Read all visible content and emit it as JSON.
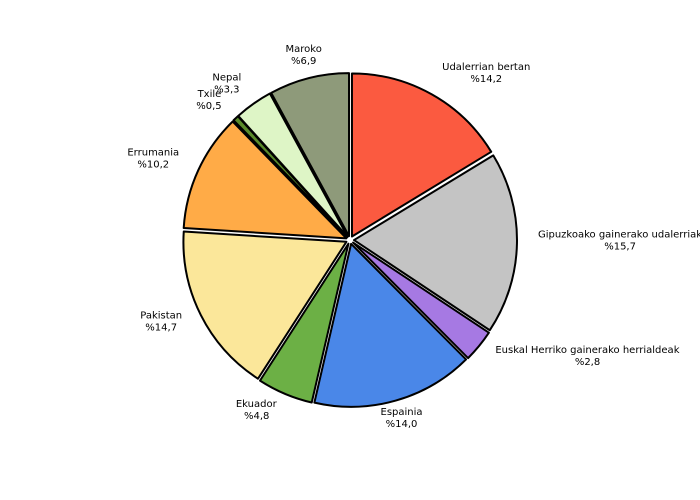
{
  "chart_data": {
    "type": "pie",
    "categories": [
      "Udalerrian bertan",
      "Gipuzkoako gainerako udalerriak",
      "Euskal Herriko gainerako herrialdeak",
      "Espainia",
      "Ekuador",
      "Pakistan",
      "Errumania",
      "Txile",
      "Nepal",
      "Maroko"
    ],
    "values": [
      14.2,
      15.7,
      2.8,
      14.0,
      4.8,
      14.7,
      10.2,
      0.5,
      3.3,
      6.9
    ],
    "value_labels": [
      "%14,2",
      "%15,7",
      "%2,8",
      "%14,0",
      "%4,8",
      "%14,7",
      "%10,2",
      "%0,5",
      "%3,3",
      "%6,9"
    ],
    "colors": [
      "#fb5a40",
      "#c4c4c4",
      "#a679e3",
      "#4a87e8",
      "#6cb045",
      "#fbe79a",
      "#ffab47",
      "#5a8a2a",
      "#def5c6",
      "#8e9a7a"
    ]
  }
}
